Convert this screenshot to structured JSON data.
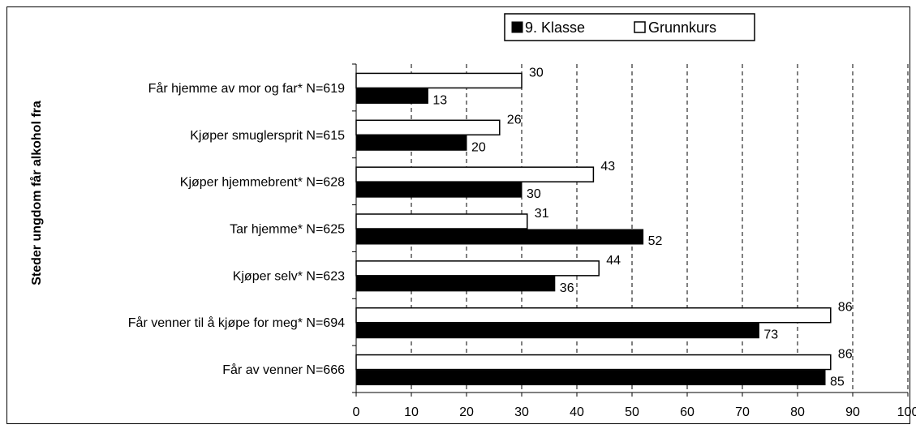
{
  "chart_data": {
    "type": "bar",
    "orientation": "horizontal",
    "ylabel": "Steder ungdom får alkohol fra",
    "xlabel": "",
    "xlim": [
      0,
      100
    ],
    "xticks": [
      0,
      10,
      20,
      30,
      40,
      50,
      60,
      70,
      80,
      90,
      100
    ],
    "grid": "vertical dashed",
    "legend_position": "top-right",
    "categories": [
      "Får hjemme av mor og far* N=619",
      "Kjøper smuglersprit N=615",
      "Kjøper hjemmebrent* N=628",
      "Tar hjemme* N=625",
      "Kjøper selv* N=623",
      "Får venner til å kjøpe for meg* N=694",
      "Får av venner N=666"
    ],
    "series": [
      {
        "name": "9. Klasse",
        "color": "#000000",
        "values": [
          13,
          20,
          30,
          52,
          36,
          73,
          85
        ]
      },
      {
        "name": "Grunnkurs",
        "color": "#ffffff",
        "values": [
          30,
          26,
          43,
          31,
          44,
          86,
          86
        ]
      }
    ]
  }
}
